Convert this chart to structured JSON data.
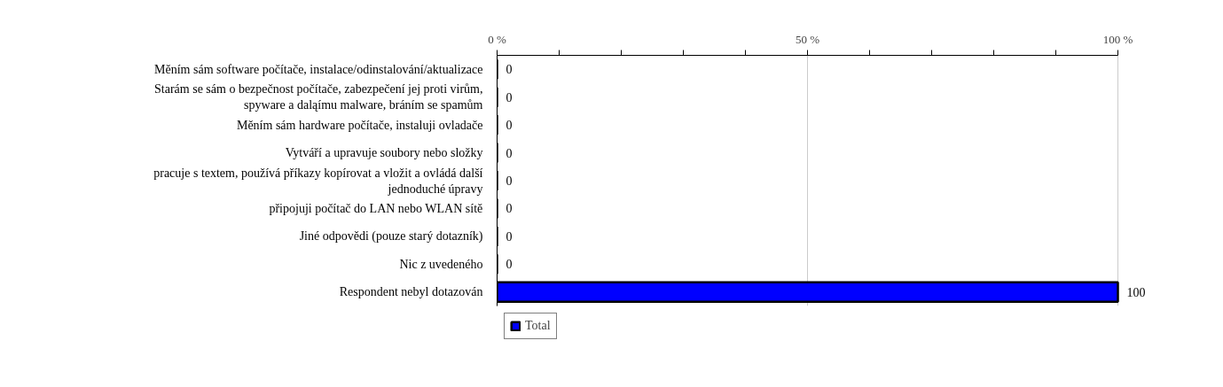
{
  "chart_data": {
    "type": "bar",
    "orientation": "horizontal",
    "categories": [
      "Měním sám software počítače, instalace/odinstalování/aktualizace",
      "Starám se sám o bezpečnost počítače, zabezpečení jej proti virům,\nspyware a daląímu malware, bráním se spamům",
      "Měním sám hardware počítače, instaluji ovladače",
      "Vytváří a upravuje soubory nebo složky",
      "pracuje s textem, používá příkazy kopírovat a vložit a ovládá další\njednoduché úpravy",
      "připojuji počítač do LAN nebo WLAN sítě",
      "Jiné odpovědi (pouze starý dotazník)",
      "Nic z uvedeného",
      "Respondent nebyl dotazován"
    ],
    "series": [
      {
        "name": "Total",
        "color": "#0000ff",
        "values": [
          0,
          0,
          0,
          0,
          0,
          0,
          0,
          0,
          100
        ]
      }
    ],
    "xlim": [
      0,
      100
    ],
    "xticks": [
      {
        "value": 0,
        "label": "0 %"
      },
      {
        "value": 10,
        "label": null
      },
      {
        "value": 20,
        "label": null
      },
      {
        "value": 30,
        "label": null
      },
      {
        "value": 40,
        "label": null
      },
      {
        "value": 50,
        "label": "50 %"
      },
      {
        "value": 60,
        "label": null
      },
      {
        "value": 70,
        "label": null
      },
      {
        "value": 80,
        "label": null
      },
      {
        "value": 90,
        "label": null
      },
      {
        "value": 100,
        "label": "100 %"
      }
    ],
    "grid": "x",
    "legend": "bottom",
    "data_labels": true
  }
}
